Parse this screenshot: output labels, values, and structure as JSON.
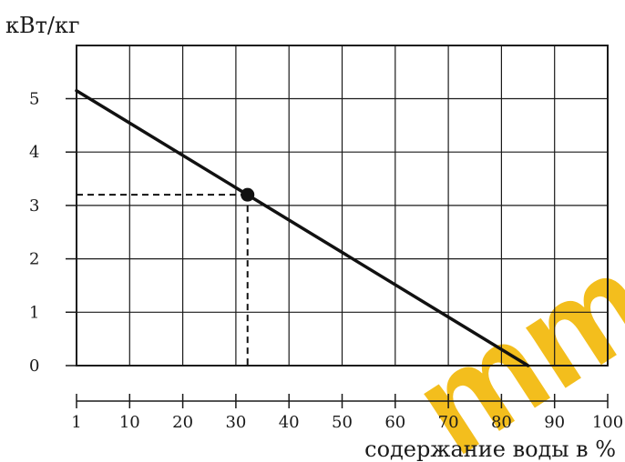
{
  "chart_data": {
    "type": "line",
    "title": "",
    "ylabel": "кВт/кг",
    "xlabel": "содержание воды в %",
    "xlim": [
      0,
      100
    ],
    "ylim": [
      0,
      6
    ],
    "grid": true,
    "y_ticks": [
      "0",
      "1",
      "2",
      "3",
      "4",
      "5"
    ],
    "x_ticks": [
      "1",
      "10",
      "20",
      "30",
      "40",
      "50",
      "60",
      "70",
      "80",
      "90",
      "100"
    ],
    "series": [
      {
        "x": [
          0,
          85
        ],
        "y": [
          5.15,
          0
        ]
      }
    ],
    "annotations": [
      {
        "type": "marker",
        "x": 32.2,
        "y": 3.2,
        "style": "dashed-projection"
      }
    ]
  },
  "watermark": {
    "text": "mmc",
    "color": "#f2b705"
  }
}
